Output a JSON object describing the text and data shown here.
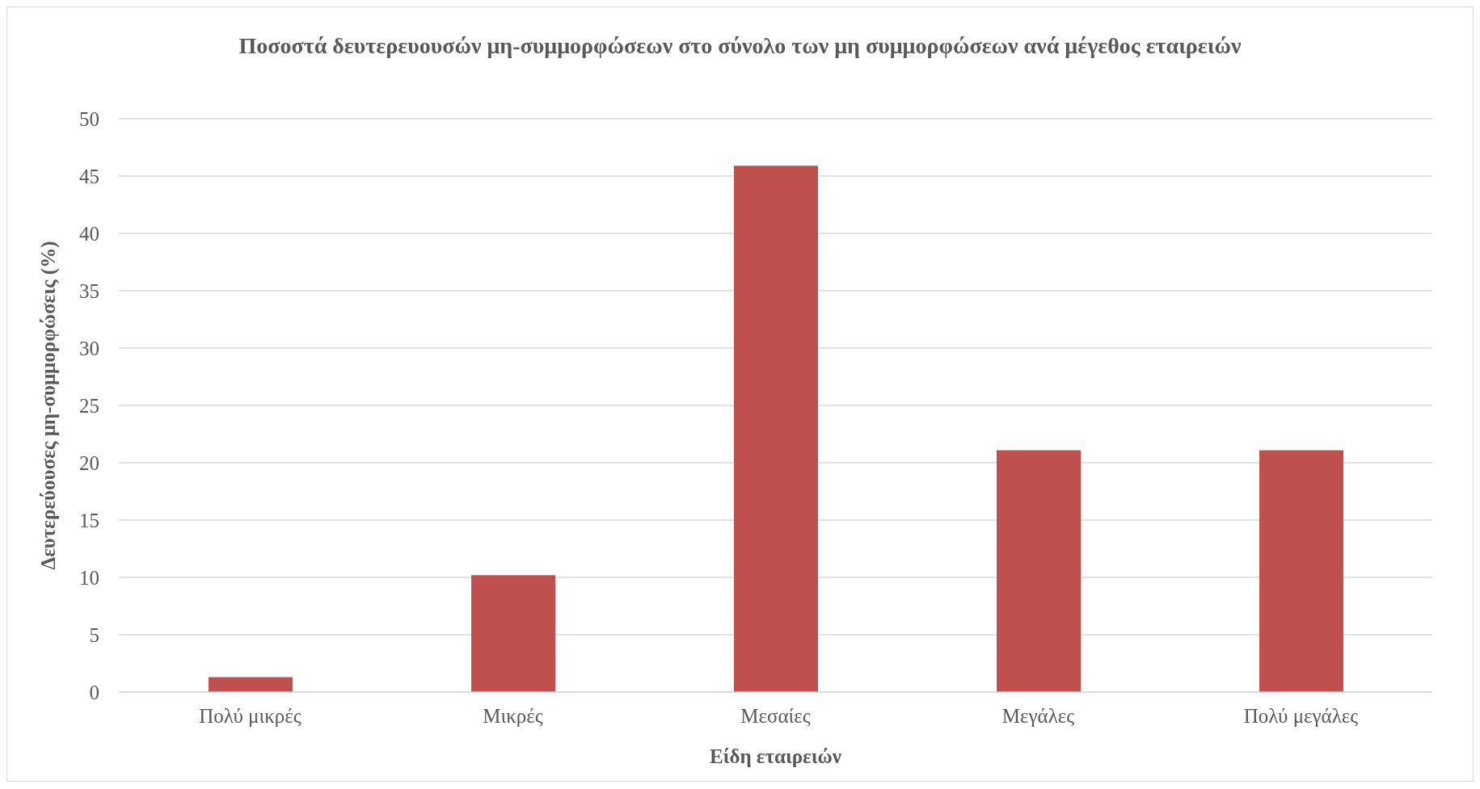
{
  "chart_data": {
    "type": "bar",
    "title": "Ποσοστά δευτερευουσών μη-συμμορφώσεων στο σύνολο των μη συμμορφώσεων ανά μέγεθος εταιρειών",
    "xlabel": "Είδη εταιρειών",
    "ylabel": "Δευτερεύουσες μη-συμμορφώσεις (%)",
    "categories": [
      "Πολύ μικρές",
      "Μικρές",
      "Μεσαίες",
      "Μεγάλες",
      "Πολύ μεγάλες"
    ],
    "values": [
      1.3,
      10.2,
      45.9,
      21.1,
      21.1
    ],
    "color": "#c0504d",
    "ylim": [
      0,
      50
    ],
    "yticks": [
      0,
      5,
      10,
      15,
      20,
      25,
      30,
      35,
      40,
      45,
      50
    ],
    "grid": "y"
  }
}
